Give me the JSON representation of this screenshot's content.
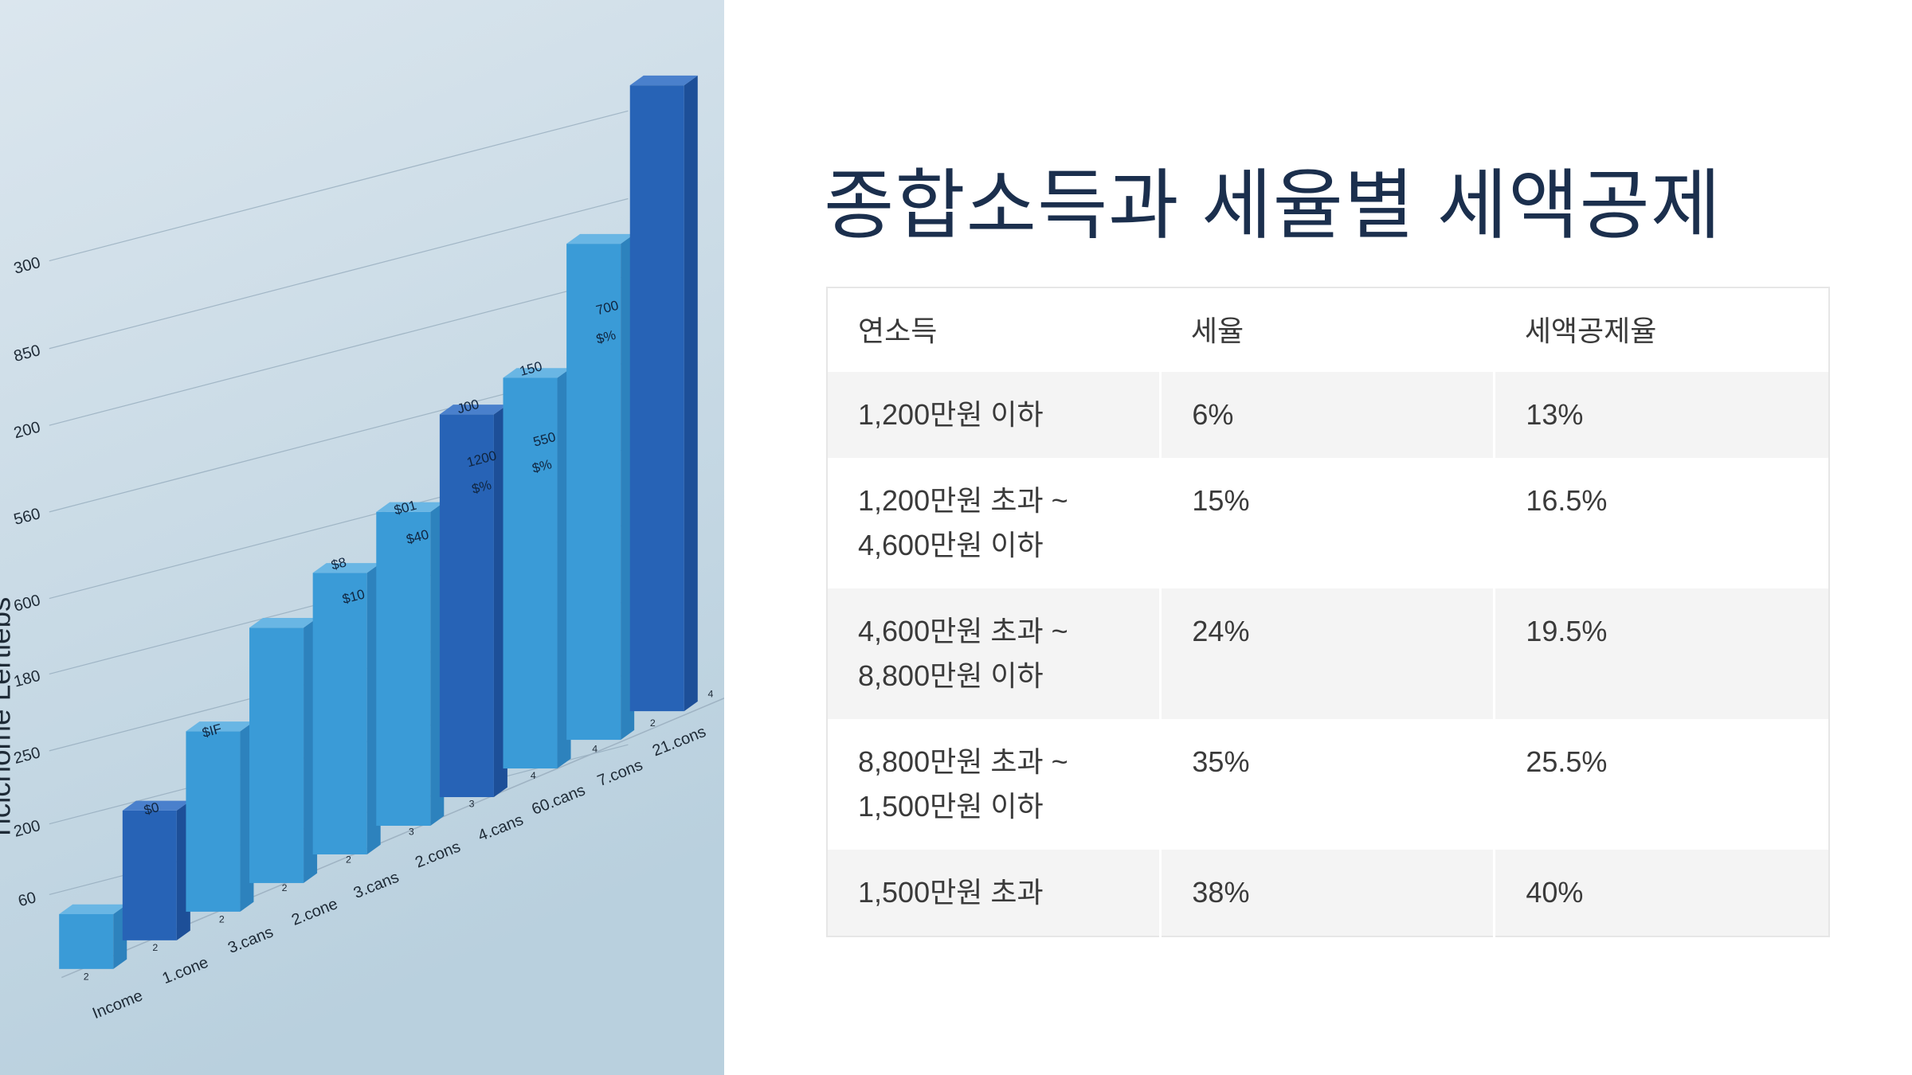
{
  "illustration": {
    "axis_title": "Ticlcnome Lertiebs",
    "y_labels": [
      "300",
      "850",
      "200",
      "560",
      "600",
      "180",
      "250",
      "200",
      "60"
    ],
    "x_labels": [
      "Income",
      "1.cone",
      "3.cans",
      "2.cone",
      "3.cans",
      "2.cons",
      "4.cans",
      "60.cans",
      "7.cons",
      "21.cons"
    ],
    "tick_digits": [
      "2",
      "2",
      "2",
      "2",
      "2",
      "3",
      "3",
      "4",
      "4",
      "2",
      "4"
    ],
    "bar_labels": [
      "$0",
      "$IF",
      "$8",
      "$10",
      "$01",
      "$40",
      "J00",
      "1200",
      "$%",
      "150",
      "550",
      "$%",
      "700",
      "$%"
    ]
  },
  "title": "종합소득과 세율별 세액공제",
  "table": {
    "header": [
      "연소득",
      "세율",
      "세액공제율"
    ],
    "rows": [
      [
        "1,200만원 이하",
        "6%",
        "13%"
      ],
      [
        [
          "1,200만원 초과 ~",
          "4,600만원 이하"
        ],
        "15%",
        "16.5%"
      ],
      [
        [
          "4,600만원 초과 ~",
          "8,800만원 이하"
        ],
        "24%",
        "19.5%"
      ],
      [
        [
          "8,800만원 초과 ~",
          "1,500만원 이하"
        ],
        "35%",
        "25.5%"
      ],
      [
        "1,500만원 초과",
        "38%",
        "40%"
      ]
    ]
  }
}
